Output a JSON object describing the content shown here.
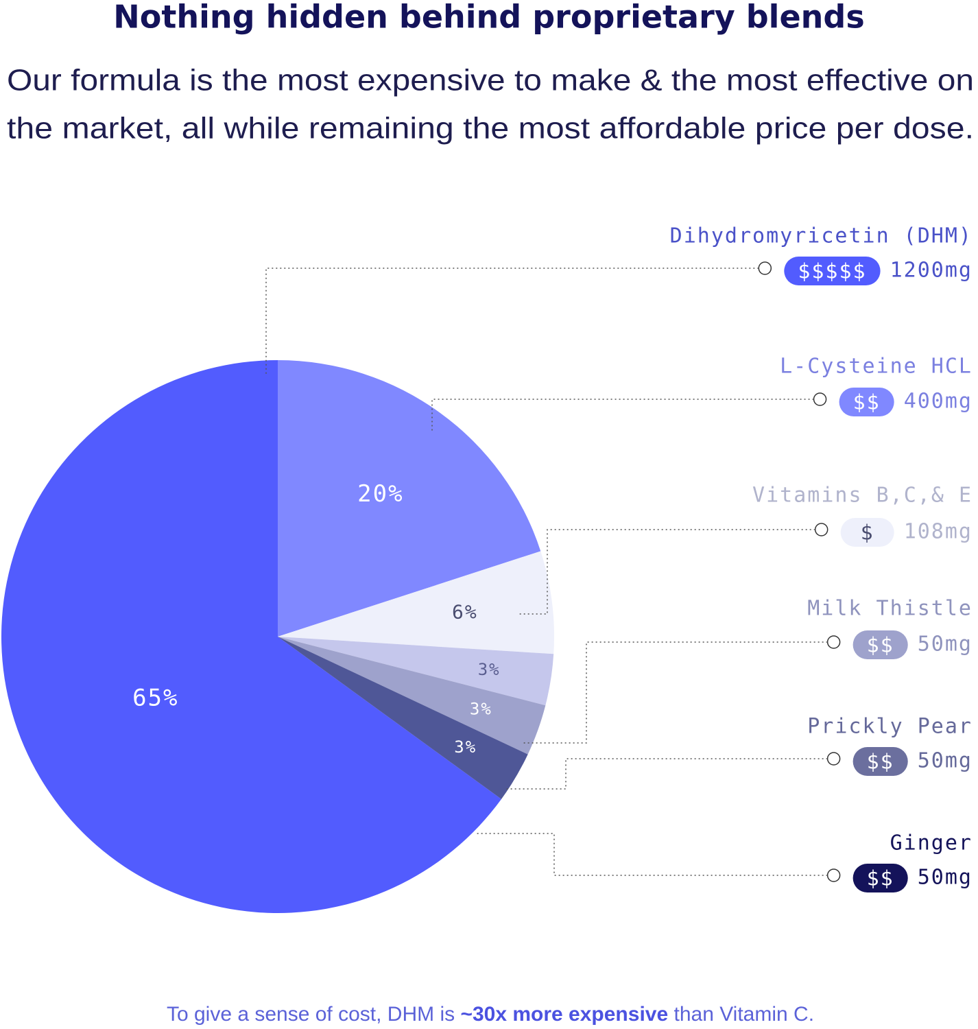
{
  "chart_data": {
    "type": "pie",
    "title": "Nothing hidden behind proprietary blends",
    "subtitle_lines": [
      "Our formula is the most expensive to make & the most effective on",
      "the market, all while remaining the most affordable price per dose."
    ],
    "categories": [
      "Dihydromyricetin (DHM)",
      "L-Cysteine HCL",
      "Vitamins B,C,& E",
      "Milk Thistle",
      "Prickly Pear",
      "Ginger"
    ],
    "values": [
      65,
      20,
      6,
      3,
      3,
      3
    ],
    "value_labels": [
      "65%",
      "20%",
      "6%",
      "3%",
      "3%",
      "3%"
    ],
    "colors": [
      "#525cfe",
      "#8088ff",
      "#eef0fb",
      "#c5c7ec",
      "#9ea2cc",
      "#4f5797"
    ],
    "value_label_colors": [
      "#ffffff",
      "#ffffff",
      "#4a4d70",
      "#5a5e90",
      "#ffffff",
      "#ffffff"
    ],
    "price_labels": [
      "$$$$$",
      "$$",
      "$",
      "$$",
      "$$",
      "$$"
    ],
    "price_colors": [
      "#525cfe",
      "#8088ff",
      "#eef0fb",
      "#9ea2cc",
      "#6b6f9e",
      "#14135a"
    ],
    "price_text_colors": [
      "#ffffff",
      "#ffffff",
      "#4a4d70",
      "#ffffff",
      "#ffffff",
      "#ffffff"
    ],
    "doses": [
      "1200mg",
      "400mg",
      "108mg",
      "50mg",
      "50mg",
      "50mg"
    ],
    "text_colors": [
      "#4a52c8",
      "#7b80e0",
      "#b0b3cc",
      "#8f93bd",
      "#65699a",
      "#14135a"
    ],
    "footnote": {
      "before": "To give a sense of cost, DHM is ",
      "emphasis": "~30x more expensive",
      "after": " than Vitamin C."
    }
  }
}
